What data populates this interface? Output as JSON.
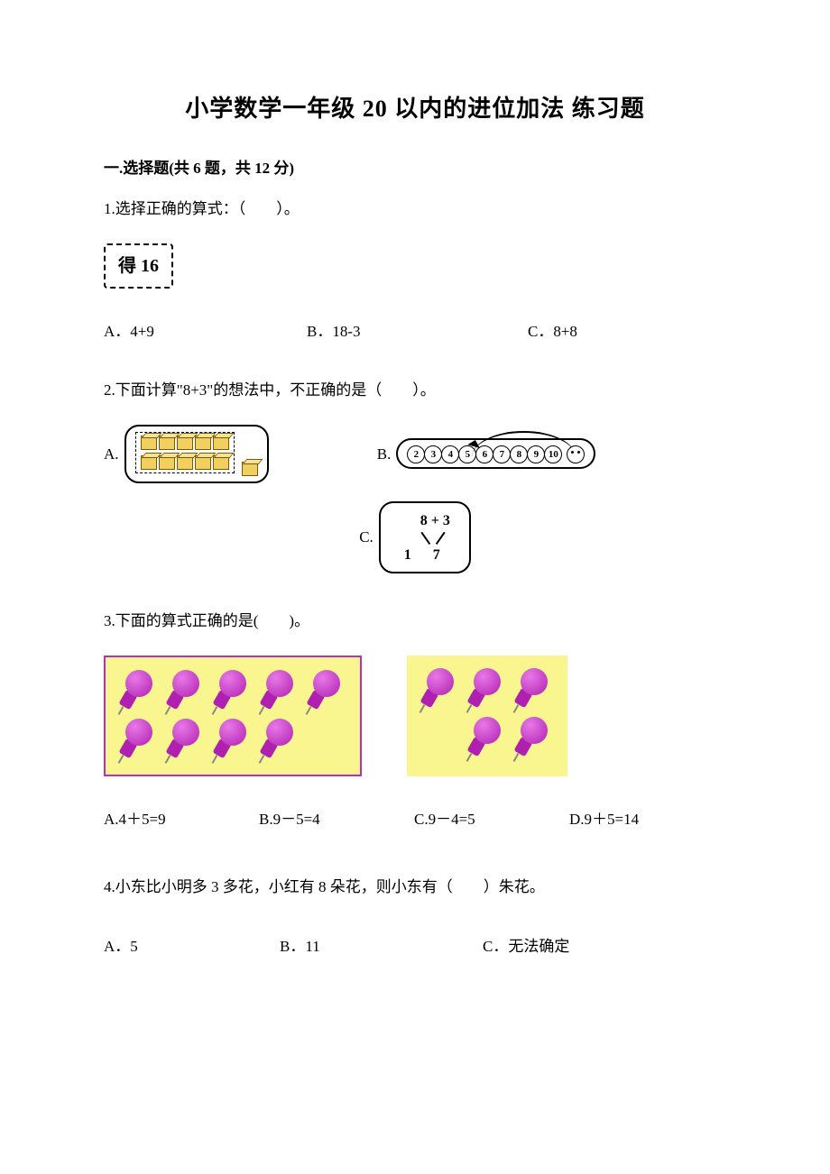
{
  "title": "小学数学一年级 20 以内的进位加法 练习题",
  "section1": {
    "header": "一.选择题(共 6 题，共 12 分)"
  },
  "q1": {
    "text": "1.选择正确的算式：（　　）。",
    "box": "得 16",
    "a": "A．4+9",
    "b": "B．18-3",
    "c": "C．8+8"
  },
  "q2": {
    "text": "2.下面计算\"8+3\"的想法中，不正确的是（　　）。",
    "a": "A.",
    "b": "B.",
    "c": "C.",
    "numline": [
      "2",
      "3",
      "4",
      "5",
      "6",
      "7",
      "8",
      "9",
      "10"
    ],
    "split_top": "8  +  3",
    "split_bottom": "1 7"
  },
  "q3": {
    "text": "3.下面的算式正确的是(　　)。",
    "left_pins": {
      "row1": 5,
      "row2": 4
    },
    "right_pins": {
      "row1": 3,
      "row2": 2
    },
    "a": "A.4＋5=9",
    "b": "B.9－5=4",
    "c": "C.9－4=5",
    "d": "D.9＋5=14"
  },
  "q4": {
    "text": "4.小东比小明多 3 多花，小红有 8 朵花，则小东有（　　）朱花。",
    "a": "A．5",
    "b": "B．11",
    "c": "C．无法确定"
  },
  "colors": {
    "pin_bg": "#faf68f",
    "pin_fill": "#b020b0",
    "cube_fill": "#f2d060",
    "text": "#000000",
    "bg": "#ffffff"
  }
}
